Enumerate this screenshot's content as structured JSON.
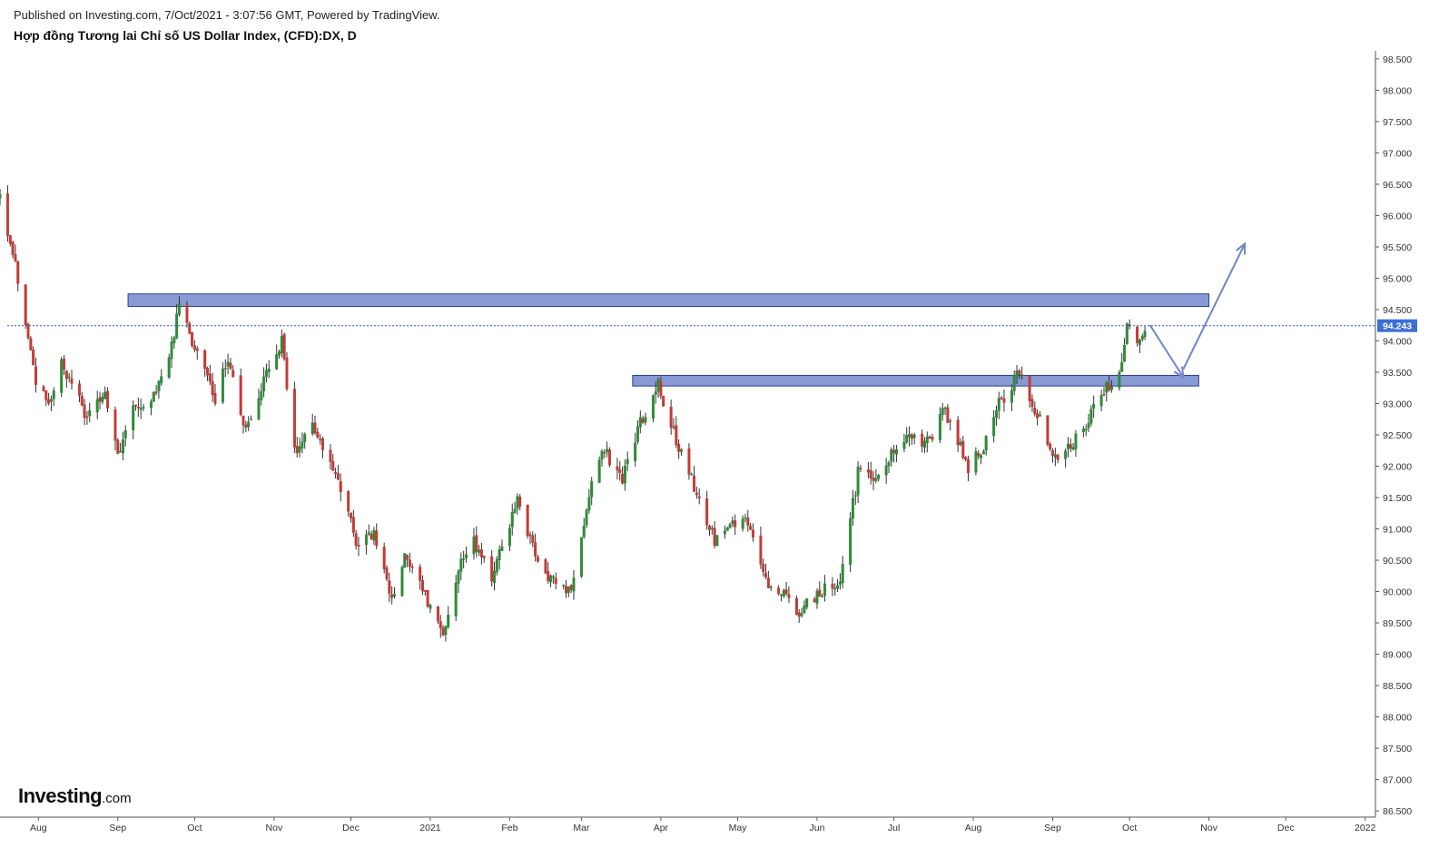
{
  "header": {
    "published": "Published on Investing.com, 7/Oct/2021 - 3:07:56 GMT, Powered by TradingView.",
    "title": "Hợp đồng Tương lai Chỉ số US Dollar Index, (CFD):DX, D"
  },
  "logo": {
    "main": "Investing",
    "suffix": ".com"
  },
  "colors": {
    "up": "#2f8a3a",
    "down": "#c23b37",
    "wick": "#333333",
    "zone_fill": "#7b8fcf",
    "zone_stroke": "#2c3e8c",
    "arrow": "#6f86c9",
    "last_price_bg": "#3b6fd6",
    "last_price_line": "#2b57c7",
    "axis": "#555555"
  },
  "chart_data": {
    "type": "candlestick",
    "title": "Hợp đồng Tương lai Chỉ số US Dollar Index, (CFD):DX, D",
    "y_axis": {
      "min": 86.4,
      "max": 98.6,
      "ticks": [
        86.5,
        87.0,
        87.5,
        88.0,
        88.5,
        89.0,
        89.5,
        90.0,
        90.5,
        91.0,
        91.5,
        92.0,
        92.5,
        93.0,
        93.5,
        94.0,
        94.5,
        95.0,
        95.5,
        96.0,
        96.5,
        97.0,
        97.5,
        98.0,
        98.5
      ],
      "tick_labels": [
        "86.500",
        "87.000",
        "87.500",
        "88.000",
        "88.500",
        "89.000",
        "89.500",
        "90.000",
        "90.500",
        "91.000",
        "91.500",
        "92.000",
        "92.500",
        "93.000",
        "93.500",
        "94.000",
        "94.500",
        "95.000",
        "95.500",
        "96.000",
        "96.500",
        "97.000",
        "97.500",
        "98.000",
        "98.500"
      ]
    },
    "x_axis": {
      "start": "2020-07-17",
      "end": "2022-01-05",
      "tick_labels": [
        {
          "label": "Aug",
          "date": "2020-08-01"
        },
        {
          "label": "Sep",
          "date": "2020-09-01"
        },
        {
          "label": "Oct",
          "date": "2020-10-01"
        },
        {
          "label": "Nov",
          "date": "2020-11-01"
        },
        {
          "label": "Dec",
          "date": "2020-12-01"
        },
        {
          "label": "2021",
          "date": "2021-01-01"
        },
        {
          "label": "Feb",
          "date": "2021-02-01"
        },
        {
          "label": "Mar",
          "date": "2021-03-01"
        },
        {
          "label": "Apr",
          "date": "2021-04-01"
        },
        {
          "label": "May",
          "date": "2021-05-01"
        },
        {
          "label": "Jun",
          "date": "2021-06-01"
        },
        {
          "label": "Jul",
          "date": "2021-07-01"
        },
        {
          "label": "Aug",
          "date": "2021-08-01"
        },
        {
          "label": "Sep",
          "date": "2021-09-01"
        },
        {
          "label": "Oct",
          "date": "2021-10-01"
        },
        {
          "label": "Nov",
          "date": "2021-11-01"
        },
        {
          "label": "Dec",
          "date": "2021-12-01"
        },
        {
          "label": "2022",
          "date": "2022-01-01"
        }
      ]
    },
    "last_price": 94.243,
    "last_price_label": "94.243",
    "price_path": [
      {
        "date": "2020-07-17",
        "price": 96.3
      },
      {
        "date": "2020-07-24",
        "price": 95.0
      },
      {
        "date": "2020-07-31",
        "price": 93.4
      },
      {
        "date": "2020-08-05",
        "price": 92.9
      },
      {
        "date": "2020-08-10",
        "price": 93.6
      },
      {
        "date": "2020-08-20",
        "price": 92.8
      },
      {
        "date": "2020-08-27",
        "price": 93.2
      },
      {
        "date": "2020-09-01",
        "price": 92.2
      },
      {
        "date": "2020-09-07",
        "price": 92.9
      },
      {
        "date": "2020-09-15",
        "price": 93.1
      },
      {
        "date": "2020-09-21",
        "price": 93.8
      },
      {
        "date": "2020-09-25",
        "price": 94.5
      },
      {
        "date": "2020-10-01",
        "price": 93.9
      },
      {
        "date": "2020-10-09",
        "price": 93.1
      },
      {
        "date": "2020-10-14",
        "price": 93.7
      },
      {
        "date": "2020-10-21",
        "price": 92.6
      },
      {
        "date": "2020-10-28",
        "price": 93.4
      },
      {
        "date": "2020-11-04",
        "price": 94.0
      },
      {
        "date": "2020-11-09",
        "price": 92.2
      },
      {
        "date": "2020-11-16",
        "price": 92.6
      },
      {
        "date": "2020-11-25",
        "price": 91.9
      },
      {
        "date": "2020-12-04",
        "price": 90.7
      },
      {
        "date": "2020-12-10",
        "price": 90.9
      },
      {
        "date": "2020-12-17",
        "price": 89.9
      },
      {
        "date": "2020-12-22",
        "price": 90.6
      },
      {
        "date": "2021-01-06",
        "price": 89.3
      },
      {
        "date": "2021-01-12",
        "price": 90.4
      },
      {
        "date": "2021-01-18",
        "price": 90.8
      },
      {
        "date": "2021-01-25",
        "price": 90.2
      },
      {
        "date": "2021-02-04",
        "price": 91.5
      },
      {
        "date": "2021-02-12",
        "price": 90.4
      },
      {
        "date": "2021-02-25",
        "price": 90.0
      },
      {
        "date": "2021-03-04",
        "price": 91.5
      },
      {
        "date": "2021-03-09",
        "price": 92.3
      },
      {
        "date": "2021-03-17",
        "price": 91.8
      },
      {
        "date": "2021-03-25",
        "price": 92.8
      },
      {
        "date": "2021-03-31",
        "price": 93.3
      },
      {
        "date": "2021-04-07",
        "price": 92.4
      },
      {
        "date": "2021-04-16",
        "price": 91.5
      },
      {
        "date": "2021-04-22",
        "price": 90.8
      },
      {
        "date": "2021-05-04",
        "price": 91.2
      },
      {
        "date": "2021-05-12",
        "price": 90.2
      },
      {
        "date": "2021-05-25",
        "price": 89.7
      },
      {
        "date": "2021-06-02",
        "price": 90.0
      },
      {
        "date": "2021-06-10",
        "price": 90.1
      },
      {
        "date": "2021-06-17",
        "price": 91.9
      },
      {
        "date": "2021-06-24",
        "price": 91.8
      },
      {
        "date": "2021-07-07",
        "price": 92.6
      },
      {
        "date": "2021-07-13",
        "price": 92.3
      },
      {
        "date": "2021-07-21",
        "price": 92.9
      },
      {
        "date": "2021-07-30",
        "price": 92.0
      },
      {
        "date": "2021-08-05",
        "price": 92.3
      },
      {
        "date": "2021-08-11",
        "price": 93.0
      },
      {
        "date": "2021-08-19",
        "price": 93.5
      },
      {
        "date": "2021-08-25",
        "price": 92.9
      },
      {
        "date": "2021-09-03",
        "price": 92.1
      },
      {
        "date": "2021-09-13",
        "price": 92.6
      },
      {
        "date": "2021-09-20",
        "price": 93.2
      },
      {
        "date": "2021-09-27",
        "price": 93.4
      },
      {
        "date": "2021-09-30",
        "price": 94.3
      },
      {
        "date": "2021-10-05",
        "price": 94.0
      },
      {
        "date": "2021-10-07",
        "price": 94.24
      }
    ],
    "zones": [
      {
        "name": "upper-resistance-zone",
        "from_date": "2020-09-05",
        "to_date": "2021-11-01",
        "low": 94.55,
        "high": 94.75
      },
      {
        "name": "lower-support-zone",
        "from_date": "2021-03-21",
        "to_date": "2021-10-28",
        "low": 93.28,
        "high": 93.45
      }
    ],
    "projection_arrows": [
      {
        "name": "pullback-arrow",
        "from": {
          "date": "2021-10-09",
          "price": 94.25
        },
        "to": {
          "date": "2021-10-22",
          "price": 93.42
        }
      },
      {
        "name": "breakout-arrow",
        "from": {
          "date": "2021-10-22",
          "price": 93.55
        },
        "to": {
          "date": "2021-11-15",
          "price": 95.55
        }
      }
    ]
  }
}
